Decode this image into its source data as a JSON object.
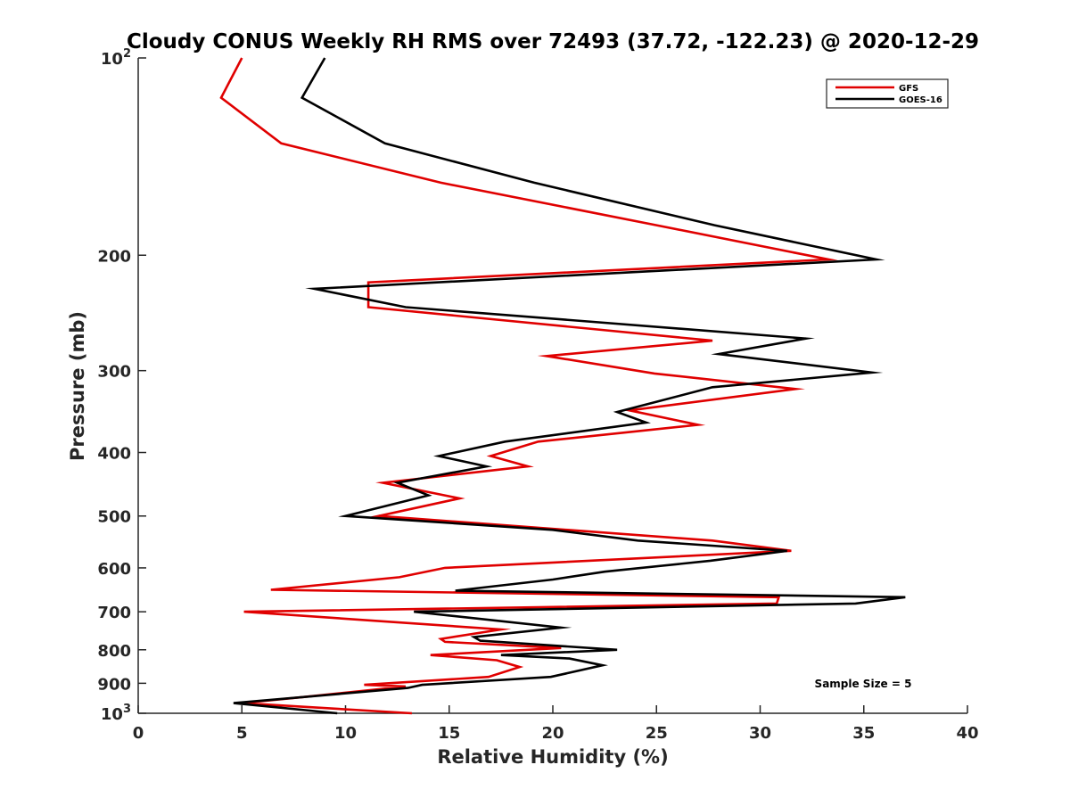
{
  "chart_data": {
    "type": "line",
    "title": "Cloudy CONUS Weekly RH RMS over 72493 (37.72, -122.23) @ 2020-12-29",
    "xlabel": "Relative Humidity (%)",
    "ylabel": "Pressure (mb)",
    "xlim": [
      0,
      40
    ],
    "ylim": [
      100,
      1000
    ],
    "y_scale": "log",
    "y_reversed": true,
    "grid": false,
    "legend_position": "top-right",
    "x_ticks": [
      "0",
      "5",
      "10",
      "15",
      "20",
      "25",
      "30",
      "35",
      "40"
    ],
    "y_ticks": [
      {
        "value": 100,
        "base": "10",
        "exp": "2"
      },
      {
        "value": 200,
        "base": "200",
        "exp": ""
      },
      {
        "value": 300,
        "base": "300",
        "exp": ""
      },
      {
        "value": 400,
        "base": "400",
        "exp": ""
      },
      {
        "value": 500,
        "base": "500",
        "exp": ""
      },
      {
        "value": 600,
        "base": "600",
        "exp": ""
      },
      {
        "value": 700,
        "base": "700",
        "exp": ""
      },
      {
        "value": 800,
        "base": "800",
        "exp": ""
      },
      {
        "value": 900,
        "base": "900",
        "exp": ""
      },
      {
        "value": 1000,
        "base": "10",
        "exp": "3"
      }
    ],
    "annotation": "Sample Size = 5",
    "series": [
      {
        "name": "GFS",
        "color": "#e00000",
        "points": [
          [
            5.0,
            100
          ],
          [
            4.0,
            115
          ],
          [
            6.9,
            135
          ],
          [
            14.6,
            155
          ],
          [
            25.0,
            180
          ],
          [
            33.3,
            203
          ],
          [
            11.1,
            220
          ],
          [
            11.1,
            240
          ],
          [
            27.7,
            270
          ],
          [
            19.7,
            285
          ],
          [
            24.9,
            303
          ],
          [
            31.7,
            320
          ],
          [
            23.7,
            345
          ],
          [
            27.0,
            363
          ],
          [
            19.3,
            385
          ],
          [
            17.0,
            405
          ],
          [
            18.8,
            420
          ],
          [
            11.8,
            445
          ],
          [
            15.5,
            470
          ],
          [
            11.6,
            500
          ],
          [
            27.7,
            545
          ],
          [
            31.5,
            565
          ],
          [
            14.8,
            600
          ],
          [
            12.6,
            620
          ],
          [
            6.4,
            648
          ],
          [
            30.9,
            665
          ],
          [
            30.8,
            680
          ],
          [
            5.1,
            700
          ],
          [
            17.5,
            745
          ],
          [
            14.6,
            770
          ],
          [
            14.8,
            778
          ],
          [
            20.4,
            795
          ],
          [
            14.1,
            815
          ],
          [
            17.3,
            830
          ],
          [
            18.4,
            850
          ],
          [
            16.9,
            880
          ],
          [
            10.9,
            905
          ],
          [
            12.9,
            910
          ],
          [
            7.9,
            945
          ],
          [
            5.0,
            965
          ],
          [
            13.2,
            1000
          ]
        ]
      },
      {
        "name": "GOES-16",
        "color": "#000000",
        "points": [
          [
            9.0,
            100
          ],
          [
            7.9,
            115
          ],
          [
            11.9,
            135
          ],
          [
            19.1,
            155
          ],
          [
            27.8,
            180
          ],
          [
            35.6,
            203
          ],
          [
            8.5,
            225
          ],
          [
            12.9,
            240
          ],
          [
            32.2,
            268
          ],
          [
            28.0,
            283
          ],
          [
            35.4,
            302
          ],
          [
            27.7,
            318
          ],
          [
            23.1,
            347
          ],
          [
            24.5,
            360
          ],
          [
            17.7,
            385
          ],
          [
            14.5,
            405
          ],
          [
            16.8,
            420
          ],
          [
            12.5,
            445
          ],
          [
            14.0,
            465
          ],
          [
            10.0,
            500
          ],
          [
            20.0,
            525
          ],
          [
            24.1,
            545
          ],
          [
            31.3,
            565
          ],
          [
            27.6,
            585
          ],
          [
            22.5,
            608
          ],
          [
            20.0,
            625
          ],
          [
            15.3,
            650
          ],
          [
            37.0,
            665
          ],
          [
            34.6,
            680
          ],
          [
            13.3,
            700
          ],
          [
            20.4,
            740
          ],
          [
            16.2,
            765
          ],
          [
            16.5,
            775
          ],
          [
            23.1,
            800
          ],
          [
            17.5,
            815
          ],
          [
            20.8,
            825
          ],
          [
            22.4,
            845
          ],
          [
            19.9,
            880
          ],
          [
            13.7,
            905
          ],
          [
            13.0,
            915
          ],
          [
            4.6,
            965
          ],
          [
            9.6,
            1000
          ]
        ]
      }
    ]
  }
}
